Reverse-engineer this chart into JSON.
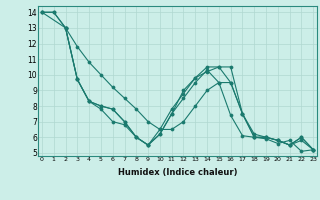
{
  "xlabel": "Humidex (Indice chaleur)",
  "bg_color": "#cceee8",
  "grid_color": "#b0d8d0",
  "line_color": "#1a7a6e",
  "series": [
    {
      "x": [
        0,
        1,
        2,
        3,
        4,
        5,
        6,
        7,
        8,
        9,
        10,
        11,
        12,
        13,
        14,
        15,
        16,
        17,
        18,
        19,
        20,
        21,
        22,
        23
      ],
      "y": [
        14,
        14,
        13,
        11.8,
        10.8,
        10.0,
        9.2,
        8.5,
        7.8,
        7.0,
        6.5,
        6.5,
        7.0,
        8.0,
        9.0,
        9.5,
        9.5,
        7.5,
        6.2,
        6.0,
        5.8,
        5.5,
        5.8,
        5.2
      ]
    },
    {
      "x": [
        0,
        1,
        2,
        3,
        4,
        5,
        6,
        7,
        8,
        9,
        10,
        11,
        12,
        13,
        14,
        15,
        16,
        17,
        18,
        19,
        20,
        21,
        22,
        23
      ],
      "y": [
        14,
        14,
        13,
        9.7,
        8.3,
        8.0,
        7.8,
        7.0,
        6.0,
        5.5,
        6.5,
        7.8,
        8.8,
        9.8,
        10.2,
        10.5,
        10.5,
        7.5,
        6.0,
        6.0,
        5.8,
        5.5,
        6.0,
        5.2
      ]
    },
    {
      "x": [
        2,
        3,
        4,
        5,
        6,
        7,
        8,
        9,
        10,
        11,
        12,
        13,
        14,
        15,
        16,
        17,
        18,
        19,
        20,
        21,
        22,
        23
      ],
      "y": [
        13,
        9.7,
        8.3,
        8.0,
        7.8,
        7.0,
        6.0,
        5.5,
        6.2,
        7.5,
        9.0,
        9.8,
        10.5,
        10.5,
        9.5,
        7.5,
        6.0,
        6.0,
        5.8,
        5.5,
        6.0,
        5.2
      ]
    },
    {
      "x": [
        0,
        2,
        3,
        4,
        5,
        6,
        7,
        8,
        9,
        10,
        11,
        12,
        13,
        14,
        15,
        16,
        17,
        18,
        19,
        20,
        21,
        22,
        23
      ],
      "y": [
        14,
        13,
        9.7,
        8.3,
        7.8,
        7.0,
        6.8,
        6.0,
        5.5,
        6.2,
        7.5,
        8.5,
        9.5,
        10.3,
        9.5,
        7.4,
        6.1,
        6.0,
        5.9,
        5.6,
        5.8,
        5.1,
        5.2
      ]
    }
  ],
  "xlim": [
    -0.3,
    23.3
  ],
  "ylim": [
    4.8,
    14.4
  ],
  "xticks": [
    0,
    1,
    2,
    3,
    4,
    5,
    6,
    7,
    8,
    9,
    10,
    11,
    12,
    13,
    14,
    15,
    16,
    17,
    18,
    19,
    20,
    21,
    22,
    23
  ],
  "yticks": [
    5,
    6,
    7,
    8,
    9,
    10,
    11,
    12,
    13,
    14
  ]
}
